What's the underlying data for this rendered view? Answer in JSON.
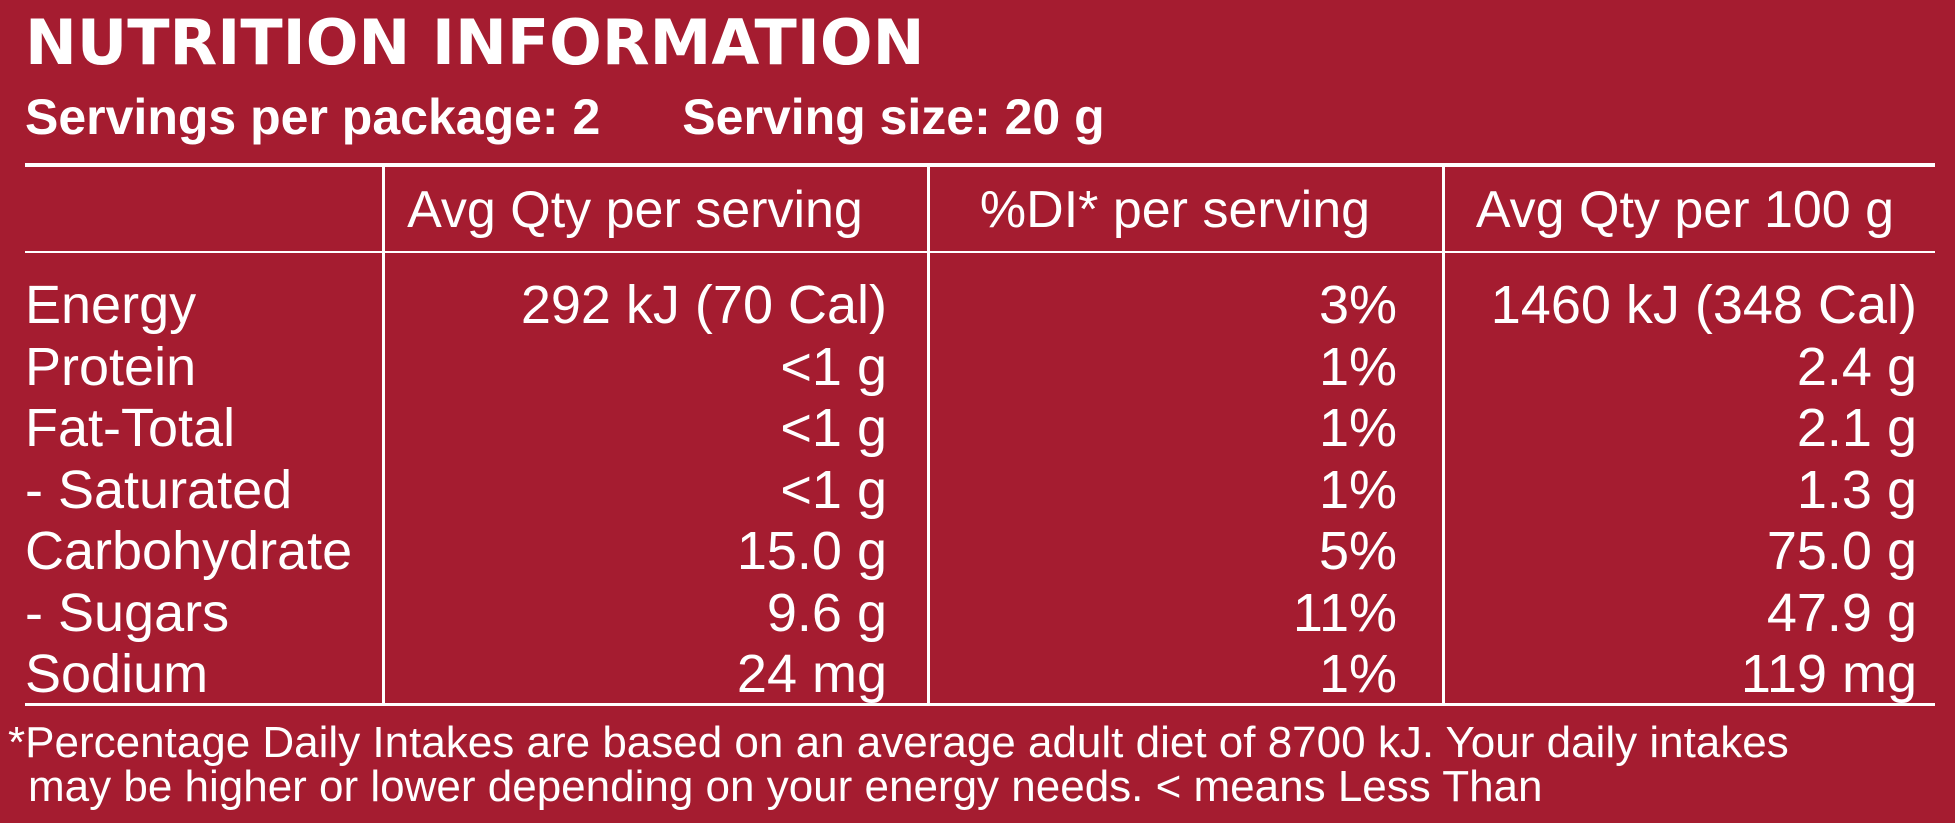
{
  "title": "NUTRITION INFORMATION",
  "servings_per_package": "Servings per package: 2",
  "serving_size": "Serving size: 20 g",
  "headers": [
    "Avg Qty per serving",
    "%DI* per serving",
    "Avg Qty per 100 g"
  ],
  "rows": [
    {
      "label": "Energy",
      "per_serving": "292 kJ (70 Cal)",
      "di": "3%",
      "per_100g": "1460 kJ (348 Cal)"
    },
    {
      "label": "Protein",
      "per_serving": "<1 g",
      "di": "1%",
      "per_100g": "2.4 g"
    },
    {
      "label": "Fat-Total",
      "per_serving": "<1 g",
      "di": "1%",
      "per_100g": "2.1 g"
    },
    {
      "label": "- Saturated",
      "per_serving": "<1 g",
      "di": "1%",
      "per_100g": "1.3 g"
    },
    {
      "label": "Carbohydrate",
      "per_serving": "15.0 g",
      "di": "5%",
      "per_100g": "75.0 g"
    },
    {
      "label": "- Sugars",
      "per_serving": "9.6 g",
      "di": "11%",
      "per_100g": "47.9 g"
    },
    {
      "label": "Sodium",
      "per_serving": "24 mg",
      "di": "1%",
      "per_100g": "119 mg"
    }
  ],
  "footnote": [
    "*Percentage Daily Intakes are based on an average adult diet of 8700 kJ. Your daily intakes",
    "may be higher or lower depending on your energy needs. < means Less Than"
  ],
  "colors": {
    "background": "#a51c30",
    "text": "#ffffff"
  }
}
